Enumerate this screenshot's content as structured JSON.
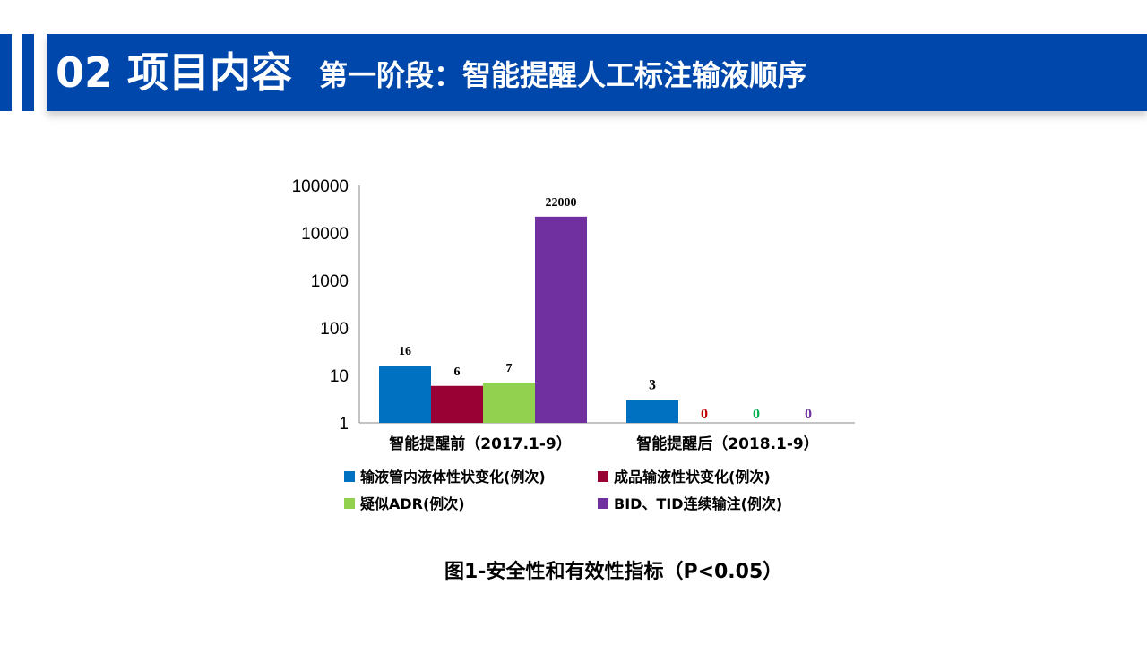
{
  "header": {
    "section_title": "02 项目内容",
    "subtitle": "第一阶段：智能提醒人工标注输液顺序",
    "brand_color": "#0047AB"
  },
  "chart_data": {
    "type": "bar",
    "y_scale": "log",
    "ylim": [
      1,
      100000
    ],
    "y_ticks": [
      "1",
      "10",
      "100",
      "1000",
      "10000",
      "100000"
    ],
    "categories": [
      "智能提醒前（2017.1-9）",
      "智能提醒后（2018.1-9）"
    ],
    "series": [
      {
        "name": "输液管内液体性状变化(例次)",
        "color": "#0070C0",
        "values": [
          16,
          3
        ],
        "labels": [
          "16",
          "3"
        ]
      },
      {
        "name": "成品输液性状变化(例次)",
        "color": "#990033",
        "values": [
          6,
          0
        ],
        "labels": [
          "6",
          "0"
        ]
      },
      {
        "name": "疑似ADR(例次)",
        "color": "#92D050",
        "values": [
          7,
          0
        ],
        "labels": [
          "7",
          "0"
        ]
      },
      {
        "name": "BID、TID连续输注(例次)",
        "color": "#7030A0",
        "values": [
          22000,
          0
        ],
        "labels": [
          "22000",
          "0"
        ]
      }
    ],
    "legend_position": "bottom",
    "grid": false
  },
  "caption": "图1-安全性和有效性指标（P<0.05）"
}
